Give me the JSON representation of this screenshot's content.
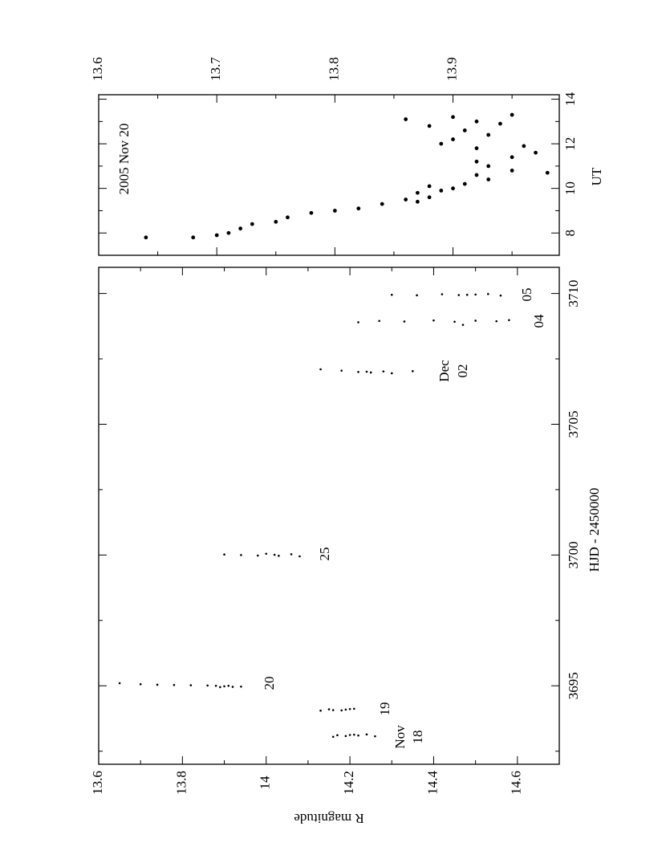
{
  "chart_data": [
    {
      "type": "scatter",
      "xlabel": "HJD - 2450000",
      "ylabel": "R magnitude",
      "xlim": [
        3692,
        3711
      ],
      "ylim": [
        13.6,
        14.7
      ],
      "xticks": [
        3695,
        3700,
        3705,
        3710
      ],
      "xminor": [
        3692.5,
        3697.5,
        3702.5,
        3707.5
      ],
      "yticks": [
        13.6,
        13.8,
        14,
        14.2,
        14.4,
        14.6
      ],
      "yminor": [
        13.7,
        13.9,
        14.1,
        14.3,
        14.5
      ],
      "color": "#000000",
      "annotations": [
        "Nov",
        "18",
        "19",
        "20",
        "25",
        "Dec",
        "02",
        "04",
        "05"
      ],
      "x": [
        3693.05,
        3693.08,
        3693.1,
        3693.12,
        3693.14,
        3693.07,
        3693.11,
        3693.13,
        3694.05,
        3694.07,
        3694.09,
        3694.1,
        3694.12,
        3694.06,
        3694.11,
        3695.1,
        3695.06,
        3695.04,
        3695.03,
        3695.02,
        3695.01,
        3695.0,
        3694.98,
        3694.96,
        3694.97,
        3695.0,
        3694.95,
        3700.02,
        3700.0,
        3699.98,
        3700.05,
        3699.97,
        3700.03,
        3699.95,
        3700.01,
        3707.1,
        3707.05,
        3707.0,
        3706.98,
        3707.02,
        3706.95,
        3707.03,
        3707.01,
        3708.9,
        3708.95,
        3708.93,
        3708.97,
        3708.92,
        3708.96,
        3708.94,
        3708.98,
        3708.8,
        3709.95,
        3709.93,
        3709.97,
        3709.94,
        3709.96,
        3709.98,
        3709.92,
        3709.95
      ],
      "y": [
        14.16,
        14.19,
        14.22,
        14.2,
        14.24,
        14.26,
        14.17,
        14.21,
        14.13,
        14.16,
        14.19,
        14.15,
        14.21,
        14.18,
        14.2,
        13.65,
        13.7,
        13.74,
        13.78,
        13.82,
        13.86,
        13.88,
        13.9,
        13.92,
        13.94,
        13.91,
        13.89,
        13.9,
        13.94,
        13.98,
        14.0,
        14.03,
        14.06,
        14.08,
        14.02,
        14.13,
        14.18,
        14.22,
        14.25,
        14.28,
        14.3,
        14.35,
        14.24,
        14.22,
        14.27,
        14.33,
        14.4,
        14.45,
        14.5,
        14.55,
        14.58,
        14.47,
        14.3,
        14.36,
        14.42,
        14.46,
        14.5,
        14.53,
        14.56,
        14.48
      ]
    },
    {
      "type": "scatter",
      "title": "2005 Nov 20",
      "xlabel": "UT",
      "xlim": [
        7,
        14.2
      ],
      "ylim": [
        13.6,
        13.99
      ],
      "xticks": [
        8,
        10,
        12,
        14
      ],
      "xminor": [
        9,
        11,
        13
      ],
      "yticks": [
        13.6,
        13.7,
        13.8,
        13.9
      ],
      "yminor": [
        13.65,
        13.75,
        13.85,
        13.95
      ],
      "color": "#000000",
      "x": [
        7.8,
        7.8,
        7.9,
        8.0,
        8.2,
        8.4,
        8.5,
        8.7,
        8.9,
        9.0,
        9.1,
        9.3,
        9.5,
        9.6,
        9.8,
        9.9,
        10.1,
        10.2,
        10.4,
        10.6,
        10.8,
        11.0,
        11.2,
        11.4,
        11.6,
        11.8,
        12.0,
        12.2,
        12.4,
        12.6,
        12.8,
        13.0,
        13.2,
        13.3,
        13.1,
        10.7,
        9.4,
        10.0,
        11.9,
        12.9
      ],
      "y": [
        13.64,
        13.68,
        13.7,
        13.71,
        13.72,
        13.73,
        13.75,
        13.76,
        13.78,
        13.8,
        13.82,
        13.84,
        13.86,
        13.88,
        13.87,
        13.89,
        13.88,
        13.91,
        13.93,
        13.92,
        13.95,
        13.93,
        13.92,
        13.95,
        13.97,
        13.92,
        13.89,
        13.9,
        13.93,
        13.91,
        13.88,
        13.92,
        13.9,
        13.95,
        13.86,
        13.98,
        13.87,
        13.9,
        13.96,
        13.94
      ]
    }
  ]
}
